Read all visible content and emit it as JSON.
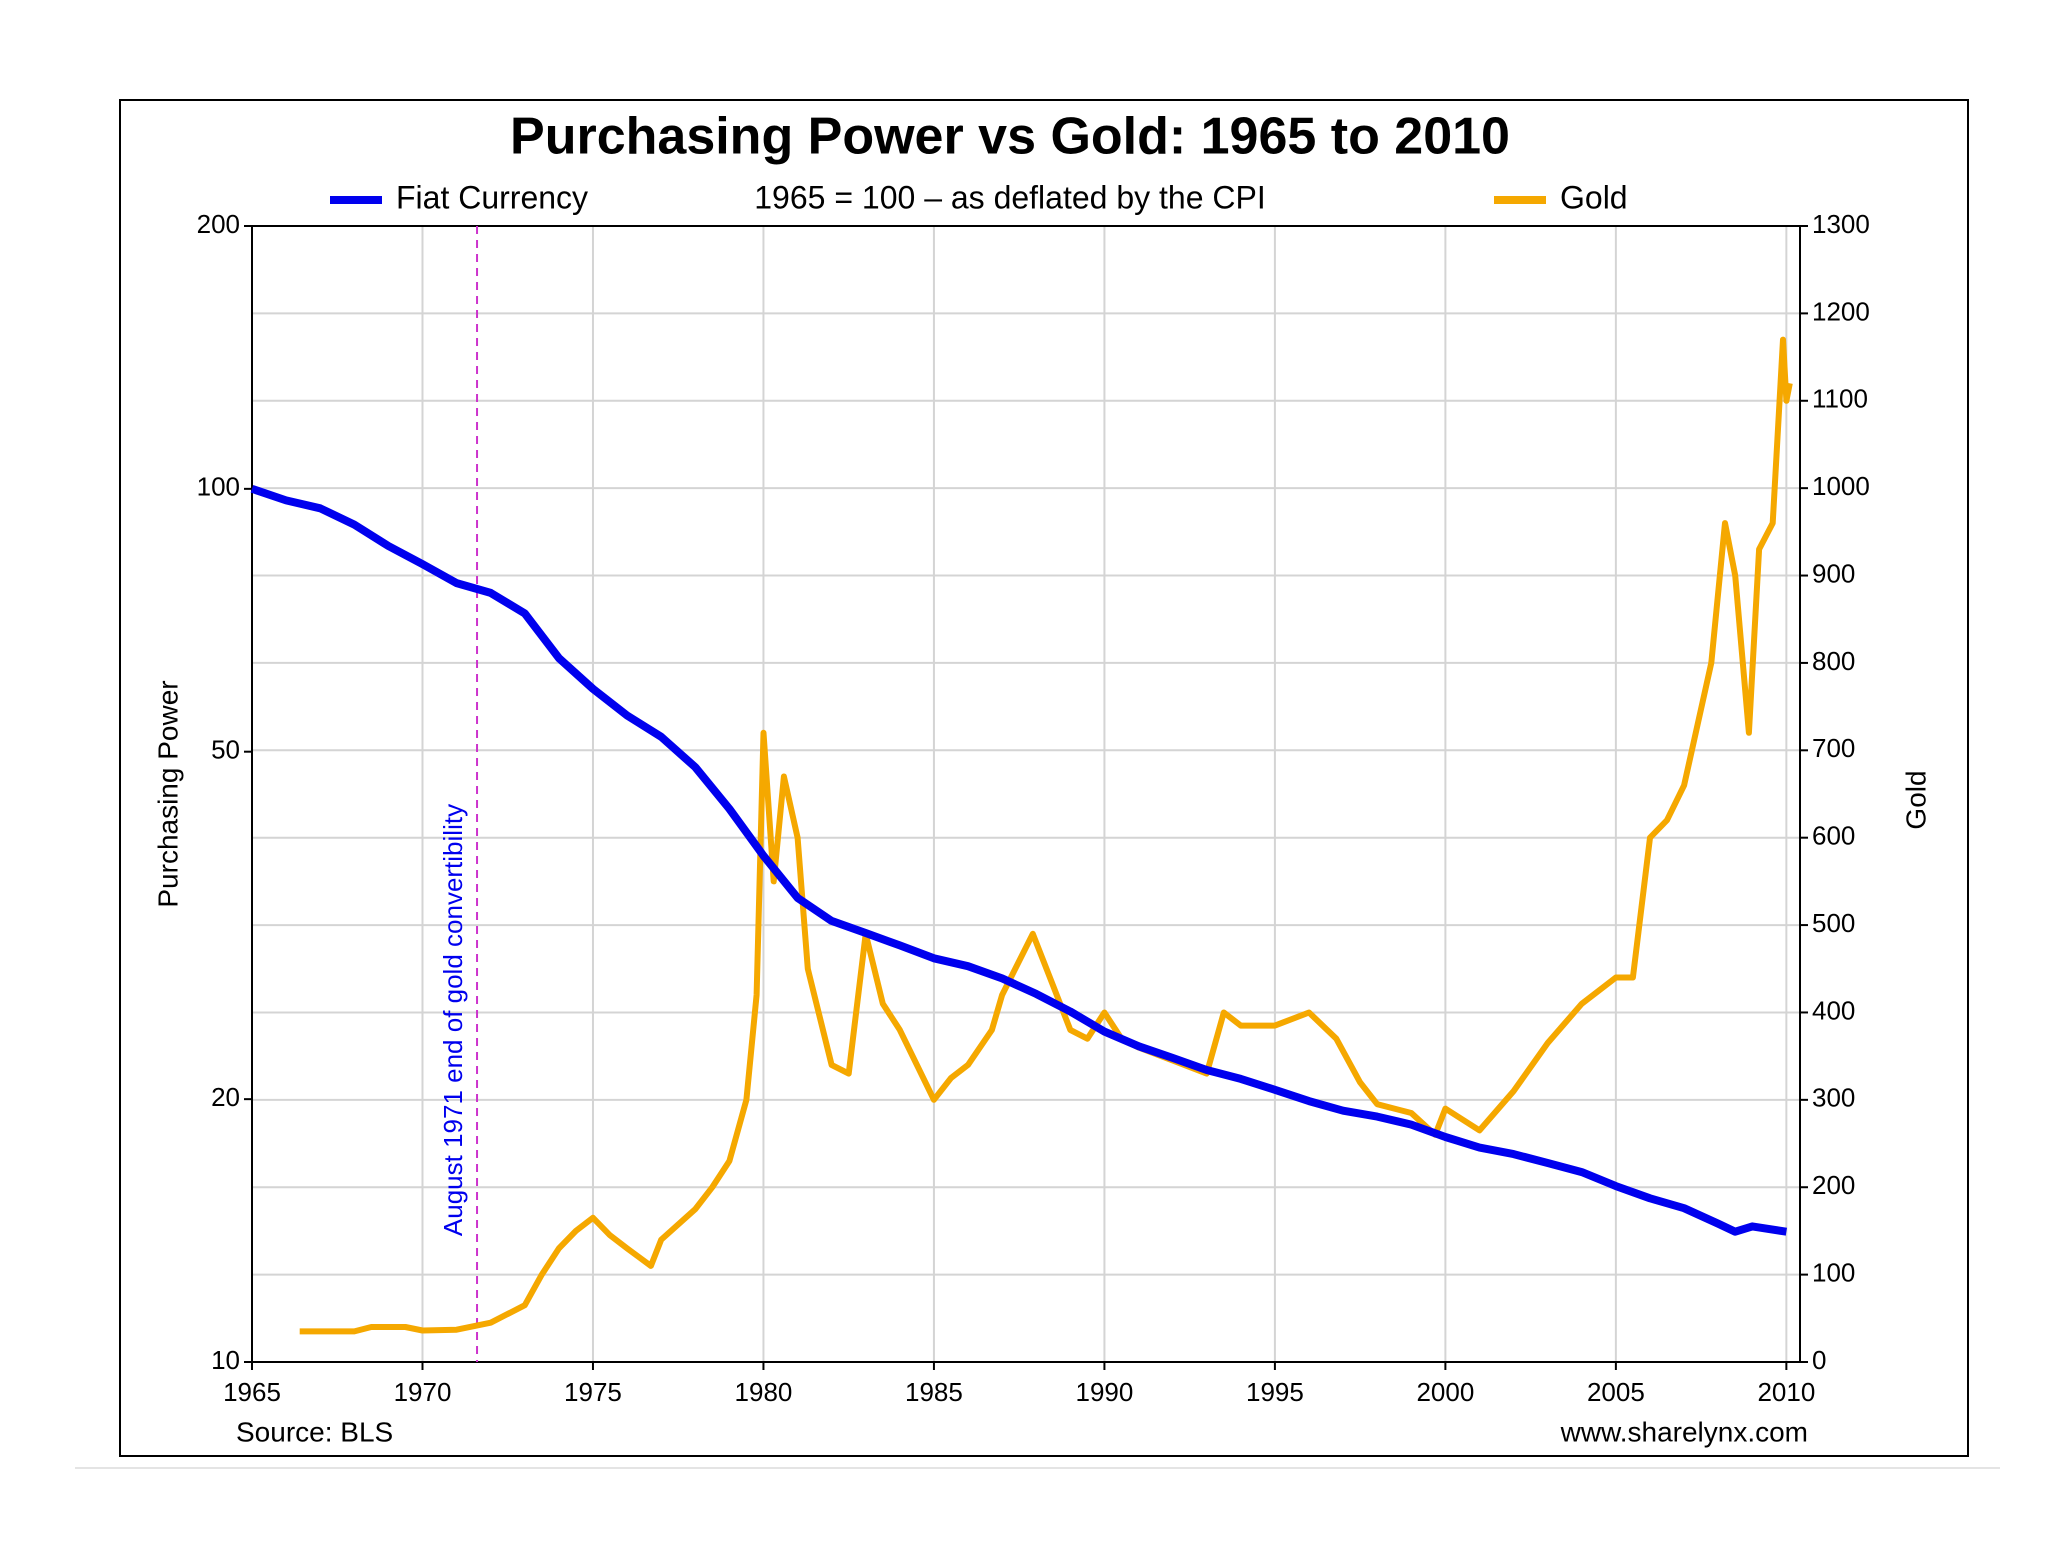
{
  "chart_data": {
    "type": "line",
    "title": "Purchasing Power vs Gold: 1965 to 2010",
    "subtitle": "1965 = 100 – as deflated by the CPI",
    "y_label": "Purchasing Power",
    "y2_label": "Gold",
    "source": "Source: BLS",
    "credit": "www.sharelynx.com",
    "annotation": {
      "text": "August 1971 end of gold convertibility",
      "x": 1971.6,
      "color": "#cc33cc"
    },
    "xlim": [
      1965,
      2010.4
    ],
    "xticks": [
      1965,
      1970,
      1975,
      1980,
      1985,
      1990,
      1995,
      2000,
      2005,
      2010
    ],
    "ylim": [
      10,
      200
    ],
    "yscale": "log",
    "yticks": [
      10,
      20,
      50,
      100,
      200
    ],
    "y2lim": [
      0,
      1300
    ],
    "y2ticks": [
      0,
      100,
      200,
      300,
      400,
      500,
      600,
      700,
      800,
      900,
      1000,
      1100,
      1200,
      1300
    ],
    "grid": true,
    "series": [
      {
        "name": "Fiat Currency",
        "color": "#0000ee",
        "x": [
          1965,
          1966,
          1967,
          1968,
          1969,
          1970,
          1971,
          1972,
          1973,
          1974,
          1975,
          1976,
          1977,
          1978,
          1979,
          1980,
          1981,
          1982,
          1983,
          1984,
          1985,
          1986,
          1987,
          1988,
          1989,
          1990,
          1991,
          1992,
          1993,
          1994,
          1995,
          1996,
          1997,
          1998,
          1999,
          2000,
          2001,
          2002,
          2003,
          2004,
          2005,
          2006,
          2007,
          2008,
          2008.5,
          2009,
          2010
        ],
        "values": [
          100,
          97,
          95,
          91,
          86,
          82,
          78,
          76,
          72,
          64,
          59,
          55,
          52,
          48,
          43,
          38,
          34,
          32,
          31,
          30,
          29,
          28.4,
          27.5,
          26.4,
          25.2,
          23.9,
          23,
          22.3,
          21.6,
          21.1,
          20.5,
          19.9,
          19.4,
          19.1,
          18.7,
          18.1,
          17.6,
          17.3,
          16.9,
          16.5,
          15.9,
          15.4,
          15,
          14.4,
          14.1,
          14.3,
          14.1
        ]
      },
      {
        "name": "Gold",
        "color": "#f5a800",
        "axis": "y2",
        "x": [
          1966.4,
          1968,
          1968.5,
          1969.5,
          1970,
          1971,
          1972,
          1973,
          1973.5,
          1974,
          1974.5,
          1975,
          1975.5,
          1976,
          1976.7,
          1977,
          1978,
          1978.5,
          1979,
          1979.5,
          1979.8,
          1980,
          1980.3,
          1980.6,
          1981,
          1981.3,
          1982,
          1982.5,
          1983,
          1983.5,
          1984,
          1984.5,
          1985,
          1985.5,
          1986,
          1986.7,
          1987,
          1987.9,
          1988.5,
          1989,
          1989.5,
          1990,
          1990.5,
          1991,
          1992,
          1993,
          1993.5,
          1994,
          1995,
          1996,
          1996.8,
          1997.5,
          1998,
          1999,
          1999.7,
          2000,
          2001,
          2002,
          2003,
          2004,
          2005,
          2005.5,
          2006,
          2006.5,
          2007,
          2007.8,
          2008.2,
          2008.5,
          2008.9,
          2009.2,
          2009.6,
          2009.9,
          2010,
          2010.1
        ],
        "values": [
          35,
          35,
          40,
          40,
          36,
          37,
          45,
          65,
          100,
          130,
          150,
          165,
          145,
          130,
          110,
          140,
          175,
          200,
          230,
          300,
          420,
          720,
          550,
          670,
          600,
          450,
          340,
          330,
          490,
          410,
          380,
          340,
          300,
          325,
          340,
          380,
          420,
          490,
          430,
          380,
          370,
          400,
          370,
          360,
          345,
          330,
          400,
          385,
          385,
          400,
          370,
          320,
          295,
          285,
          260,
          290,
          265,
          310,
          365,
          410,
          440,
          440,
          600,
          620,
          660,
          800,
          960,
          900,
          720,
          930,
          960,
          1170,
          1100,
          1120
        ]
      }
    ]
  }
}
